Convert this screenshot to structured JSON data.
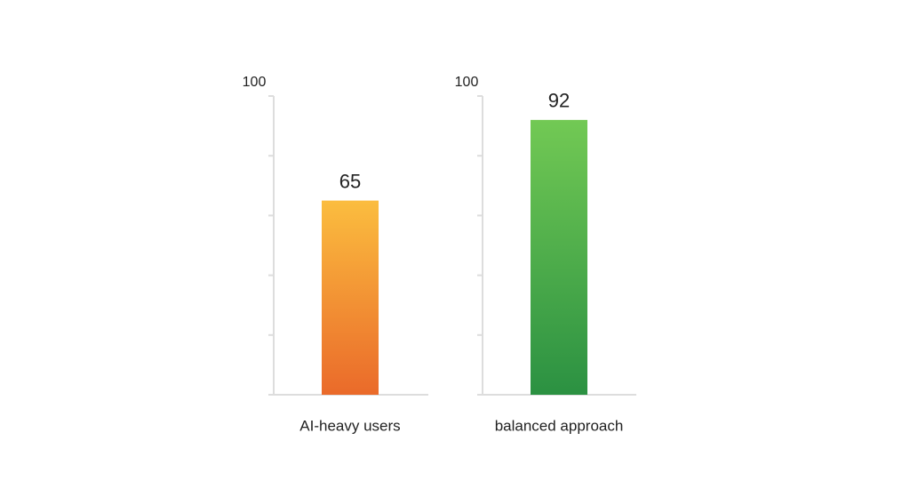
{
  "chart_data": [
    {
      "type": "bar",
      "categories": [
        "AI-heavy users"
      ],
      "values": [
        65
      ],
      "gradient": [
        "#fbbd3f",
        "#ea6a2a"
      ],
      "ylim": [
        0,
        100
      ],
      "yticks": [
        {
          "value": 0,
          "label": null
        },
        {
          "value": 20,
          "label": null
        },
        {
          "value": 40,
          "label": null
        },
        {
          "value": 60,
          "label": null
        },
        {
          "value": 80,
          "label": null
        },
        100
      ]
    },
    {
      "type": "bar",
      "categories": [
        "balanced approach"
      ],
      "values": [
        92
      ],
      "gradient": [
        "#72c954",
        "#2b9142"
      ],
      "ylim": [
        0,
        100
      ],
      "yticks": [
        {
          "value": 0,
          "label": null
        },
        {
          "value": 20,
          "label": null
        },
        {
          "value": 40,
          "label": null
        },
        {
          "value": 60,
          "label": null
        },
        {
          "value": 80,
          "label": null
        },
        100
      ]
    }
  ]
}
